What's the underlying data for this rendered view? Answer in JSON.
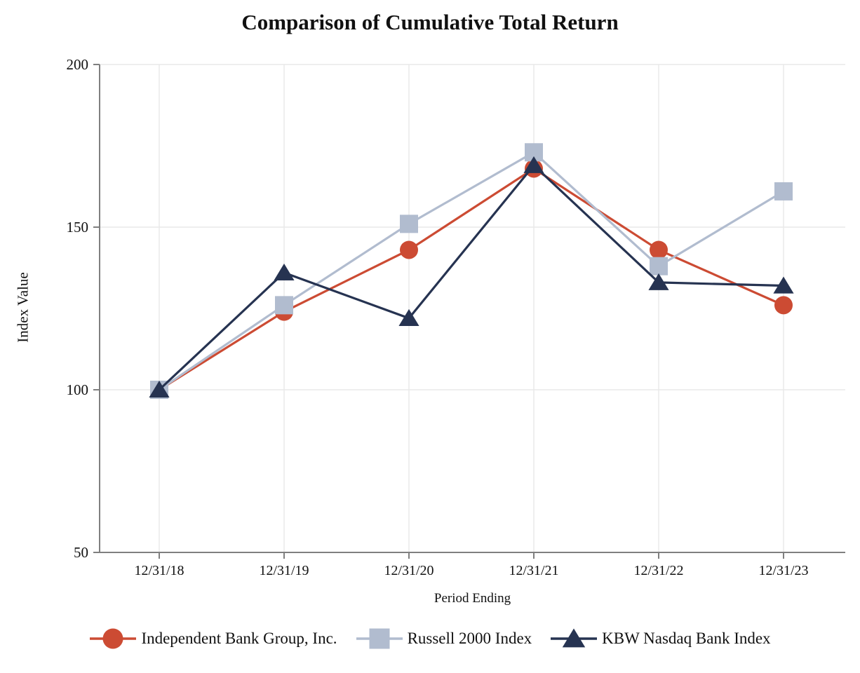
{
  "chart_data": {
    "type": "line",
    "title": "Comparison of Cumulative Total Return",
    "xlabel": "Period Ending",
    "ylabel": "Index Value",
    "categories": [
      "12/31/18",
      "12/31/19",
      "12/31/20",
      "12/31/21",
      "12/31/22",
      "12/31/23"
    ],
    "ylim": [
      50,
      200
    ],
    "yticks": [
      50,
      100,
      150,
      200
    ],
    "grid": true,
    "legend_position": "bottom",
    "series": [
      {
        "name": "Independent Bank Group, Inc.",
        "marker": "circle",
        "color": "#CC4B33",
        "values": [
          100,
          124,
          143,
          168,
          143,
          126
        ]
      },
      {
        "name": "Russell 2000 Index",
        "marker": "square",
        "color": "#B1BCCF",
        "values": [
          100,
          126,
          151,
          173,
          138,
          161
        ]
      },
      {
        "name": "KBW Nasdaq Bank Index",
        "marker": "triangle",
        "color": "#263351",
        "values": [
          100,
          136,
          122,
          169,
          133,
          132
        ]
      }
    ],
    "axis_color": "#7F7F7F",
    "grid_color": "#E8E8E8"
  }
}
